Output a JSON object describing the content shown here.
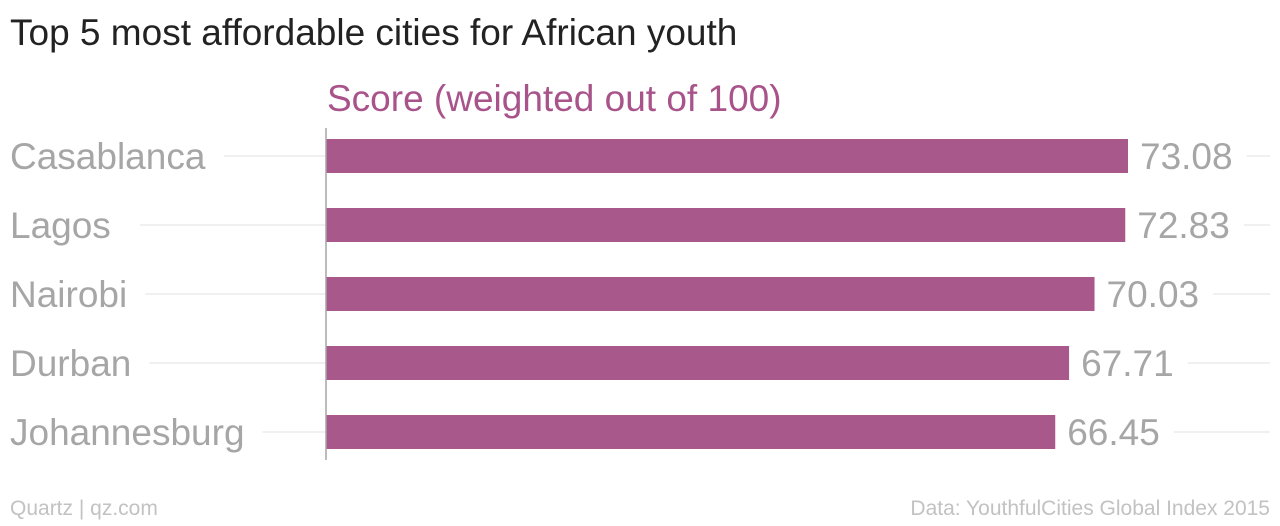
{
  "title": "Top 5 most affordable cities for African youth",
  "footer": {
    "credit": "Quartz | qz.com",
    "source": "Data: YouthfulCities Global Index 2015"
  },
  "colors": {
    "bar": "#a8588a",
    "series_label": "#a8538a",
    "category_text": "#a6a6a6",
    "value_text": "#a6a6a6",
    "gridline": "#ececec",
    "axis": "#a6a6a6"
  },
  "chart_data": {
    "type": "bar",
    "orientation": "horizontal",
    "title": "Top 5 most affordable cities for African youth",
    "categories": [
      "Casablanca",
      "Lagos",
      "Nairobi",
      "Durban",
      "Johannesburg"
    ],
    "series": [
      {
        "name": "Score (weighted out of 100)",
        "values": [
          73.08,
          72.83,
          70.03,
          67.71,
          66.45
        ],
        "value_labels": [
          "73.08",
          "72.83",
          "70.03",
          "67.71",
          "66.45"
        ]
      }
    ],
    "xlim": [
      0,
      73.08
    ],
    "grid": true,
    "legend": "top",
    "data_labels": true
  }
}
